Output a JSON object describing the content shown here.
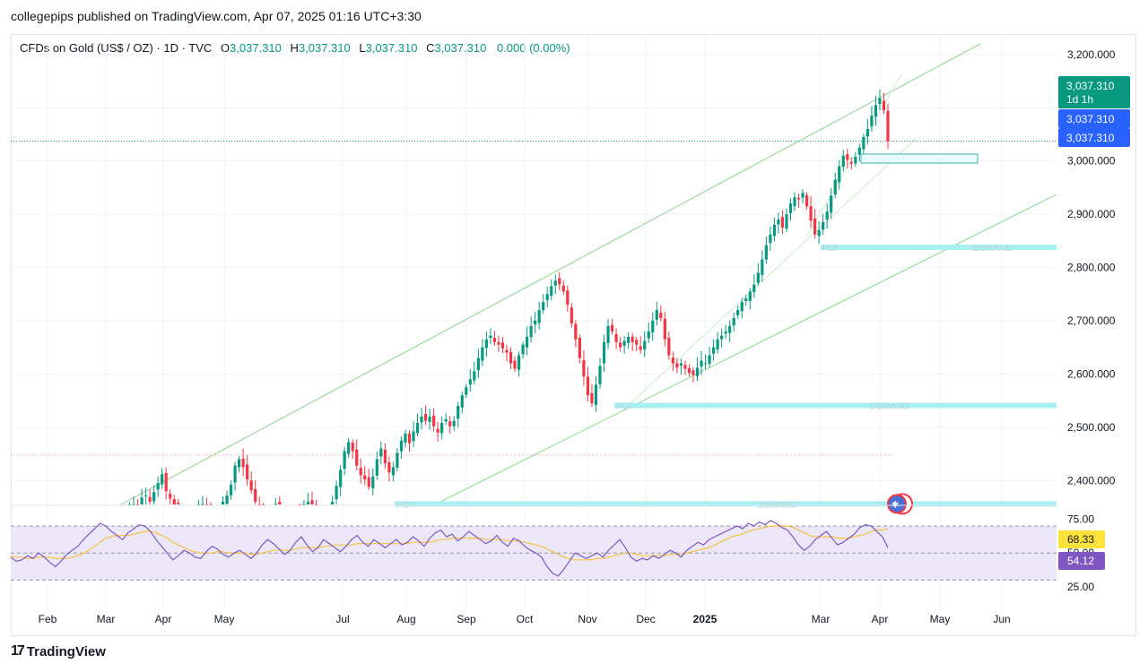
{
  "publisher_line": "collegepips published on TradingView.com, Apr 07, 2025 01:16 UTC+3:30",
  "legend": {
    "symbol": "CFDs on Gold (US$ / OZ) · 1D · TVC",
    "open_label": "O",
    "open": "3,037.310",
    "high_label": "H",
    "high": "3,037.310",
    "low_label": "L",
    "low": "3,037.310",
    "close_label": "C",
    "close": "3,037.310",
    "change": "0.000 (0.00%)"
  },
  "footer": {
    "logo_mark": "17",
    "logo_text": "TradingView"
  },
  "colors": {
    "up": "#089981",
    "down": "#f23645",
    "channel": "#9fd8a0",
    "demand": "#a6f0f2",
    "rsi_line": "#7e57c2",
    "rsi_ma": "#f5c242",
    "rsi_band": "#ece7f8",
    "price_tag_green": "#089981",
    "price_tag_blue": "#2962ff"
  },
  "chart_data": {
    "type": "candlestick",
    "price_axis": {
      "ticks": [
        3200,
        3100,
        3000,
        2900,
        2800,
        2700,
        2600,
        2500,
        2400
      ],
      "tick_labels": [
        "3,200.000",
        "3,000.000",
        "2,900.000",
        "2,800.000",
        "2,700.000",
        "2,600.000",
        "2,500.000",
        "2,400.000"
      ],
      "range": [
        2355,
        3235
      ]
    },
    "time_axis": {
      "labels": [
        "Feb",
        "Mar",
        "Apr",
        "May",
        "Jul",
        "Aug",
        "Sep",
        "Oct",
        "Nov",
        "Dec",
        "2025",
        "Mar",
        "Apr",
        "May",
        "Jun"
      ],
      "bold_label": "2025"
    },
    "price_tags": [
      {
        "text": "3,037.310",
        "subtext": "1d 1h",
        "style": "green"
      },
      {
        "text": "3,037.310",
        "style": "blue"
      },
      {
        "text": "3,037.310",
        "style": "blue"
      }
    ],
    "last_price": 3037.31,
    "zones": [
      {
        "label_left": "POI",
        "label_right": "DEMAND",
        "price": 2838
      },
      {
        "label_left": "POI",
        "label_right": "DEMAND",
        "price": 2541
      },
      {
        "label_left": "POI",
        "label_right": "DEMAND",
        "price": 2356
      }
    ],
    "box": {
      "price_top": 3013,
      "price_bottom": 2996
    },
    "red_dotted_level": 2448,
    "rsi": {
      "levels": [
        75,
        50,
        25
      ],
      "level_labels": [
        "75.00",
        "50.00",
        "25.00"
      ],
      "band": [
        30,
        70
      ],
      "rsi_value_label": "54.12",
      "ma_value_label": "68.33"
    },
    "series_close": [
      2328,
      2340,
      2352,
      2346,
      2368,
      2372,
      2360,
      2378,
      2395,
      2412,
      2380,
      2366,
      2355,
      2340,
      2326,
      2318,
      2320,
      2334,
      2348,
      2356,
      2344,
      2330,
      2322,
      2338,
      2360,
      2372,
      2392,
      2428,
      2440,
      2425,
      2402,
      2382,
      2360,
      2345,
      2338,
      2330,
      2342,
      2356,
      2348,
      2336,
      2330,
      2341,
      2335,
      2328,
      2345,
      2360,
      2352,
      2340,
      2330,
      2325,
      2340,
      2360,
      2390,
      2420,
      2455,
      2472,
      2455,
      2428,
      2410,
      2402,
      2388,
      2408,
      2440,
      2460,
      2432,
      2415,
      2425,
      2452,
      2475,
      2488,
      2470,
      2492,
      2508,
      2520,
      2512,
      2520,
      2502,
      2490,
      2508,
      2515,
      2502,
      2512,
      2540,
      2560,
      2575,
      2590,
      2605,
      2630,
      2650,
      2665,
      2672,
      2660,
      2655,
      2648,
      2640,
      2620,
      2610,
      2635,
      2655,
      2670,
      2690,
      2700,
      2720,
      2735,
      2750,
      2765,
      2775,
      2768,
      2755,
      2730,
      2695,
      2665,
      2630,
      2595,
      2560,
      2545,
      2580,
      2615,
      2660,
      2690,
      2680,
      2660,
      2650,
      2662,
      2670,
      2660,
      2655,
      2645,
      2662,
      2680,
      2700,
      2720,
      2705,
      2665,
      2635,
      2620,
      2612,
      2620,
      2610,
      2602,
      2598,
      2612,
      2625,
      2620,
      2635,
      2650,
      2665,
      2672,
      2680,
      2690,
      2705,
      2720,
      2735,
      2742,
      2755,
      2768,
      2790,
      2815,
      2842,
      2862,
      2880,
      2890,
      2875,
      2900,
      2920,
      2932,
      2928,
      2940,
      2915,
      2888,
      2862,
      2870,
      2885,
      2905,
      2935,
      2965,
      2990,
      3010,
      3002,
      2995,
      3008,
      3025,
      3045,
      3060,
      3085,
      3105,
      3118,
      3095,
      3037
    ],
    "series_rsi": [
      47,
      44,
      45,
      48,
      46,
      50,
      47,
      43,
      40,
      44,
      49,
      52,
      55,
      60,
      64,
      68,
      72,
      70,
      66,
      63,
      60,
      65,
      68,
      71,
      70,
      66,
      60,
      55,
      50,
      45,
      48,
      52,
      50,
      47,
      46,
      51,
      55,
      53,
      49,
      47,
      50,
      52,
      49,
      46,
      50,
      56,
      60,
      57,
      53,
      49,
      52,
      58,
      62,
      56,
      51,
      54,
      60,
      57,
      54,
      51,
      55,
      60,
      63,
      58,
      55,
      60,
      57,
      54,
      57,
      60,
      56,
      58,
      62,
      59,
      55,
      61,
      65,
      67,
      62,
      64,
      59,
      62,
      66,
      63,
      60,
      57,
      59,
      63,
      58,
      55,
      61,
      59,
      55,
      52,
      50,
      47,
      40,
      35,
      33,
      38,
      44,
      50,
      48,
      46,
      48,
      50,
      47,
      52,
      56,
      60,
      54,
      47,
      44,
      46,
      45,
      48,
      46,
      49,
      52,
      50,
      47,
      52,
      55,
      58,
      56,
      60,
      62,
      64,
      66,
      68,
      70,
      68,
      72,
      70,
      73,
      71,
      74,
      72,
      69,
      67,
      62,
      56,
      52,
      55,
      60,
      63,
      66,
      61,
      56,
      58,
      61,
      64,
      69,
      71,
      70,
      66,
      62,
      54
    ],
    "series_rsi_ma": [
      48,
      47,
      47,
      46,
      46,
      47,
      47,
      47,
      46,
      46,
      46,
      47,
      48,
      50,
      52,
      55,
      58,
      61,
      62,
      63,
      63,
      63,
      64,
      65,
      66,
      66,
      65,
      63,
      61,
      58,
      56,
      54,
      52,
      51,
      50,
      50,
      50,
      51,
      51,
      50,
      50,
      50,
      50,
      49,
      49,
      50,
      51,
      52,
      52,
      52,
      52,
      53,
      54,
      54,
      54,
      54,
      55,
      55,
      56,
      56,
      56,
      56,
      57,
      57,
      57,
      57,
      57,
      57,
      57,
      57,
      57,
      57,
      58,
      58,
      58,
      58,
      59,
      60,
      60,
      61,
      61,
      61,
      61,
      61,
      61,
      60,
      60,
      60,
      60,
      59,
      59,
      59,
      58,
      57,
      56,
      55,
      53,
      51,
      49,
      47,
      46,
      45,
      45,
      45,
      45,
      46,
      46,
      47,
      48,
      49,
      50,
      50,
      49,
      48,
      48,
      48,
      48,
      48,
      49,
      49,
      49,
      50,
      51,
      52,
      53,
      54,
      56,
      58,
      60,
      62,
      63,
      64,
      66,
      67,
      68,
      69,
      70,
      70,
      70,
      70,
      69,
      67,
      65,
      63,
      62,
      62,
      62,
      62,
      61,
      61,
      61,
      62,
      63,
      64,
      66,
      67,
      67,
      68
    ]
  }
}
